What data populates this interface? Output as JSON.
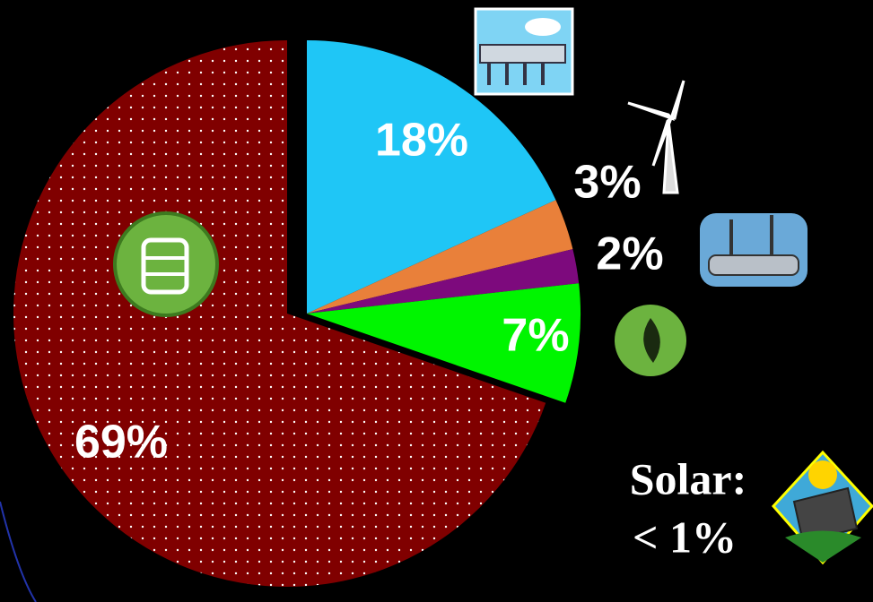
{
  "chart_data": {
    "type": "pie",
    "values": [
      18,
      3,
      2,
      7,
      69
    ],
    "value_labels": [
      "18%",
      "3%",
      "2%",
      "7%",
      "69%"
    ],
    "colors": [
      "#1fc6f6",
      "#e9803a",
      "#7d0a7d",
      "#00f500",
      "#800000"
    ],
    "annotation": [
      "Solar:",
      "< 1%"
    ]
  }
}
